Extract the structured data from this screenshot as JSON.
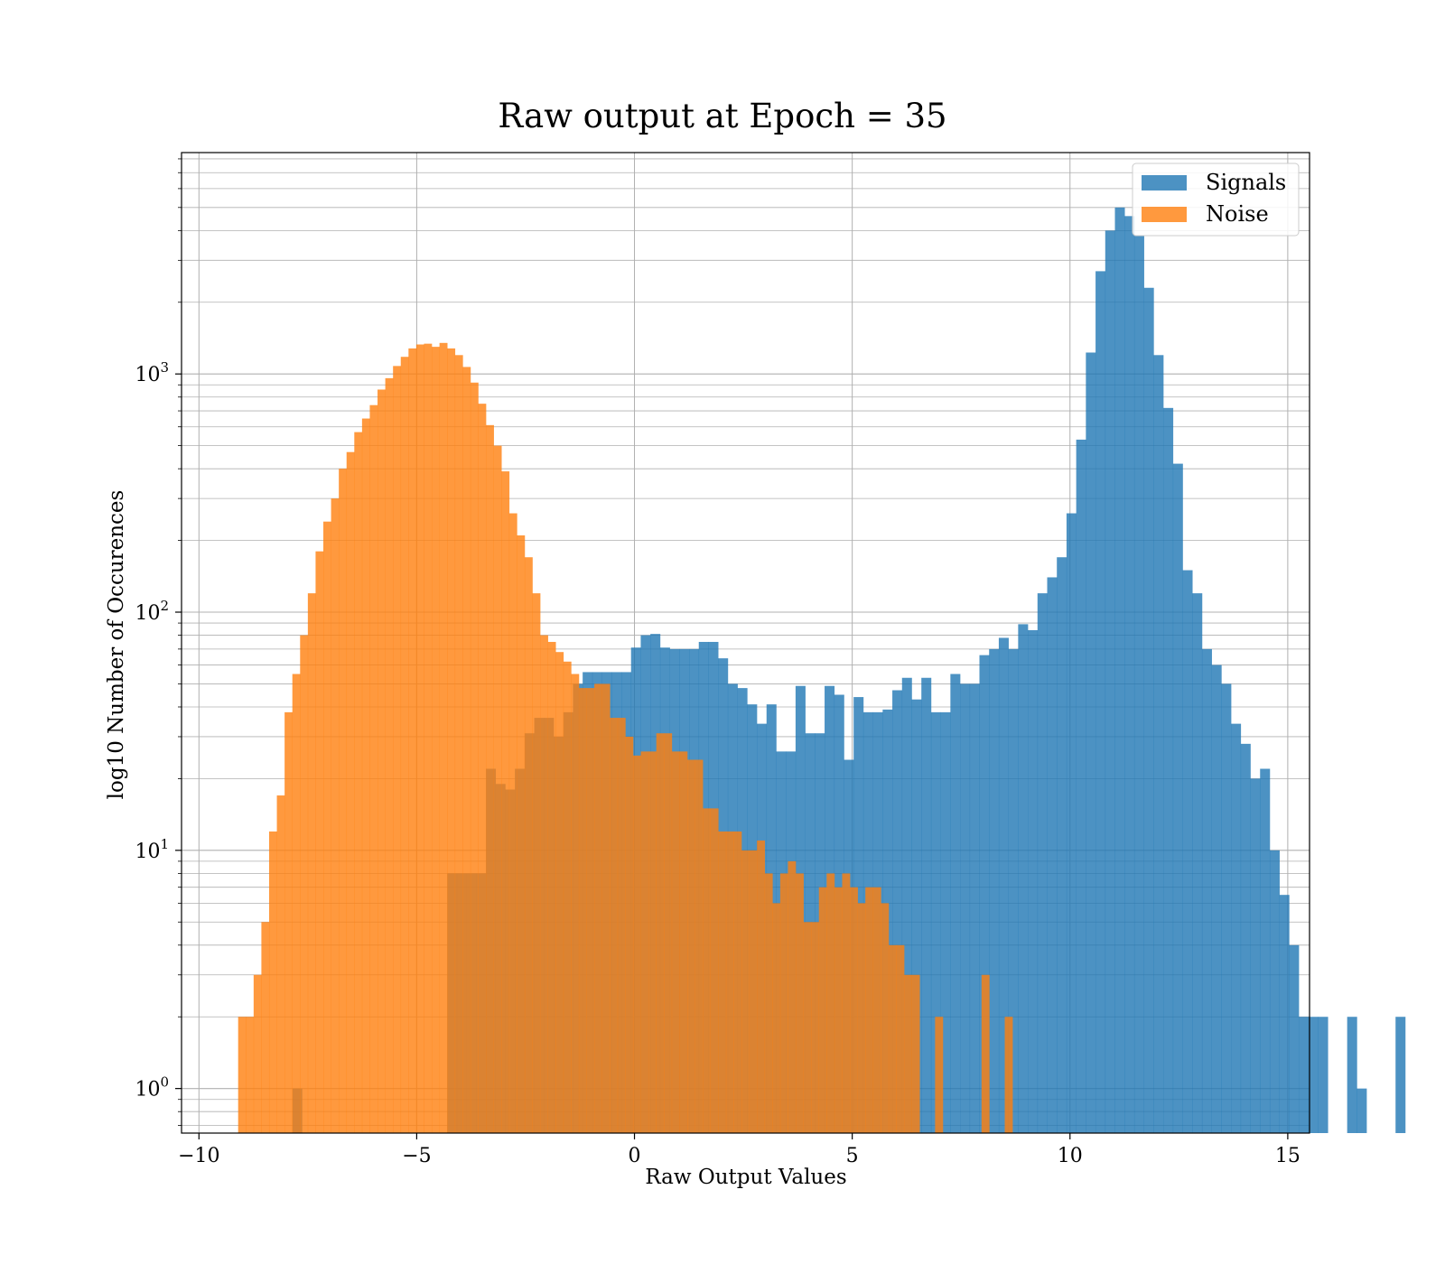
{
  "chart_data": {
    "type": "bar",
    "title": "Raw output at Epoch = 35",
    "xlabel": "Raw Output Values",
    "ylabel": "log10 Number of Occurences",
    "yscale": "log",
    "xlim": [
      -10.4,
      15.5
    ],
    "ylim": [
      0.65,
      8500
    ],
    "grid": true,
    "legend_position": "top-right",
    "x_ticks": [
      {
        "value": -10,
        "label": "−10"
      },
      {
        "value": -5,
        "label": "−5"
      },
      {
        "value": 0,
        "label": "0"
      },
      {
        "value": 5,
        "label": "5"
      },
      {
        "value": 10,
        "label": "10"
      },
      {
        "value": 15,
        "label": "15"
      }
    ],
    "y_ticks": [
      {
        "value": 1,
        "base": "10",
        "exp": "0"
      },
      {
        "value": 10,
        "base": "10",
        "exp": "1"
      },
      {
        "value": 100,
        "base": "10",
        "exp": "2"
      },
      {
        "value": 1000,
        "base": "10",
        "exp": "3"
      }
    ],
    "series": [
      {
        "name": "Signals",
        "color": "#1f77b4",
        "opacity": 0.8,
        "bin_start": -8.3,
        "bin_width": 0.2222,
        "values": [
          0,
          0,
          1,
          0,
          0,
          0,
          0,
          0,
          0,
          0,
          0,
          0,
          0,
          0,
          0,
          0,
          0,
          0,
          8,
          8,
          8,
          8,
          22,
          19,
          18,
          22,
          31,
          36,
          36,
          30,
          38,
          50,
          56,
          56,
          56,
          56,
          56,
          71,
          80,
          81,
          71,
          70,
          70,
          70,
          75,
          75,
          64,
          50,
          48,
          41,
          34,
          41,
          26,
          26,
          49,
          31,
          31,
          49,
          45,
          24,
          44,
          38,
          38,
          39,
          47,
          53,
          43,
          53,
          38,
          38,
          55,
          50,
          50,
          66,
          70,
          78,
          70,
          89,
          84,
          120,
          140,
          170,
          260,
          530,
          1230,
          2700,
          4000,
          5000,
          4600,
          3800,
          2300,
          1200,
          720,
          420,
          150,
          120,
          70,
          60,
          50,
          34,
          28,
          20,
          22,
          10,
          6.5,
          4,
          2,
          2,
          2,
          0,
          0,
          2,
          1,
          0,
          0,
          0,
          2
        ]
      },
      {
        "name": "Noise",
        "color": "#ff7f0e",
        "opacity": 0.8,
        "bin_start": -9.1,
        "bin_width": 0.1778,
        "values": [
          2,
          2,
          3,
          5,
          12,
          17,
          38,
          55,
          80,
          120,
          180,
          240,
          300,
          400,
          470,
          570,
          650,
          740,
          860,
          960,
          1080,
          1180,
          1280,
          1330,
          1340,
          1300,
          1350,
          1280,
          1200,
          1070,
          920,
          750,
          610,
          500,
          390,
          260,
          210,
          170,
          120,
          80,
          75,
          68,
          62,
          55,
          48,
          48,
          50,
          50,
          36,
          36,
          30,
          25,
          26,
          26,
          31,
          31,
          26,
          26,
          24,
          24,
          15,
          15,
          12,
          12,
          12,
          10,
          10,
          11,
          8,
          6,
          8,
          9,
          8,
          5,
          5,
          7,
          8,
          7,
          8,
          7,
          6,
          7,
          7,
          6,
          4,
          4,
          3,
          3,
          0,
          0,
          2,
          0,
          0,
          0,
          0,
          0,
          3,
          0,
          0,
          2
        ]
      }
    ]
  }
}
